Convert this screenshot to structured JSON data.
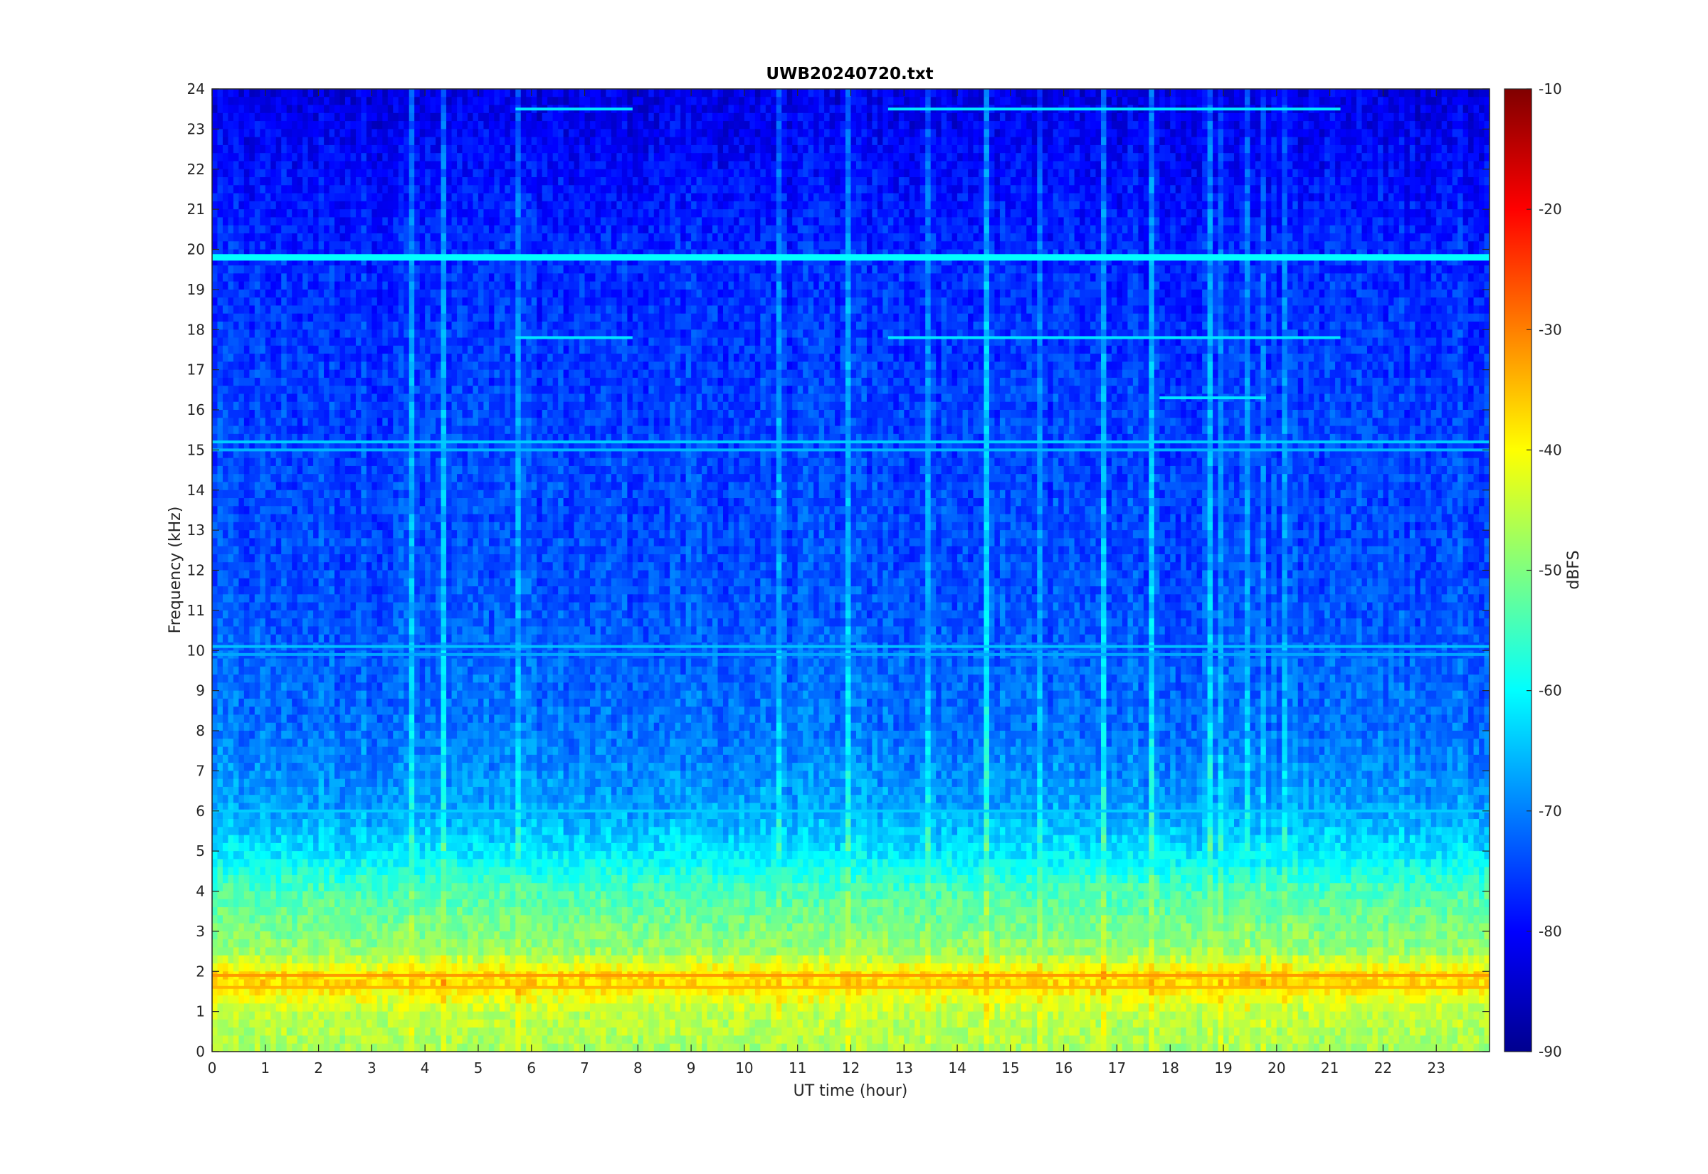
{
  "chart_data": {
    "type": "heatmap",
    "title": "UWB20240720.txt",
    "xlabel": "UT time (hour)",
    "ylabel": "Frequency (kHz)",
    "xlim": [
      0,
      24
    ],
    "ylim": [
      0,
      24
    ],
    "xticks": [
      "0",
      "1",
      "2",
      "3",
      "4",
      "5",
      "6",
      "7",
      "8",
      "9",
      "10",
      "11",
      "12",
      "13",
      "14",
      "15",
      "16",
      "17",
      "18",
      "19",
      "20",
      "21",
      "22",
      "23"
    ],
    "yticks": [
      "0",
      "1",
      "2",
      "3",
      "4",
      "5",
      "6",
      "7",
      "8",
      "9",
      "10",
      "11",
      "12",
      "13",
      "14",
      "15",
      "16",
      "17",
      "18",
      "19",
      "20",
      "21",
      "22",
      "23",
      "24"
    ],
    "colorbar": {
      "label": "dBFS",
      "range": [
        -90,
        -10
      ],
      "ticks": [
        "-10",
        "-20",
        "-30",
        "-40",
        "-50",
        "-60",
        "-70",
        "-80",
        "-90"
      ],
      "colormap": "jet"
    },
    "level_profile_dBFS": [
      {
        "freq_khz": 0,
        "level": -47
      },
      {
        "freq_khz": 1,
        "level": -45
      },
      {
        "freq_khz": 1.8,
        "level": -36
      },
      {
        "freq_khz": 2.5,
        "level": -48
      },
      {
        "freq_khz": 4,
        "level": -54
      },
      {
        "freq_khz": 5,
        "level": -62
      },
      {
        "freq_khz": 6,
        "level": -67
      },
      {
        "freq_khz": 8,
        "level": -71
      },
      {
        "freq_khz": 12,
        "level": -74
      },
      {
        "freq_khz": 16,
        "level": -75
      },
      {
        "freq_khz": 20,
        "level": -77
      },
      {
        "freq_khz": 24,
        "level": -82
      }
    ],
    "tone_lines": [
      {
        "freq_khz": 19.8,
        "x": [
          0,
          24
        ],
        "level": -60
      },
      {
        "freq_khz": 17.8,
        "x": [
          5.7,
          7.9
        ],
        "level": -62
      },
      {
        "freq_khz": 17.8,
        "x": [
          12.7,
          21.2
        ],
        "level": -62
      },
      {
        "freq_khz": 23.5,
        "x": [
          5.7,
          7.9
        ],
        "level": -62
      },
      {
        "freq_khz": 23.5,
        "x": [
          12.7,
          21.2
        ],
        "level": -62
      },
      {
        "freq_khz": 15.2,
        "x": [
          0,
          24
        ],
        "level": -64
      },
      {
        "freq_khz": 15.0,
        "x": [
          0,
          24
        ],
        "level": -66
      },
      {
        "freq_khz": 10.1,
        "x": [
          0,
          24
        ],
        "level": -65
      },
      {
        "freq_khz": 9.9,
        "x": [
          0,
          24
        ],
        "level": -67
      },
      {
        "freq_khz": 6.0,
        "x": [
          0,
          24
        ],
        "level": -64
      },
      {
        "freq_khz": 16.3,
        "x": [
          17.8,
          19.8
        ],
        "level": -62
      },
      {
        "freq_khz": 1.9,
        "x": [
          0,
          24
        ],
        "level": -32
      },
      {
        "freq_khz": 1.6,
        "x": [
          0,
          24
        ],
        "level": -34
      }
    ]
  }
}
